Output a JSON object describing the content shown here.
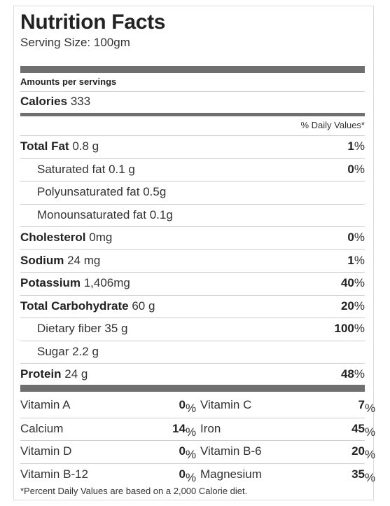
{
  "title": "Nutrition Facts",
  "serving": "Serving Size: 100gm",
  "amounts_label": "Amounts per servings",
  "calories": {
    "label": "Calories",
    "value": "333"
  },
  "dv_header": "% Daily Values*",
  "rows": [
    {
      "label": "Total Fat",
      "value": "0.8 g",
      "pct": "1",
      "bold": true
    },
    {
      "label": "Saturated fat",
      "value": "0.1 g",
      "pct": "0",
      "indent": true
    },
    {
      "label": "Polyunsaturated fat",
      "value": "0.5g",
      "pct": "",
      "indent": true
    },
    {
      "label": "Monounsaturated fat",
      "value": "0.1g",
      "pct": "",
      "indent": true
    },
    {
      "label": "Cholesterol",
      "value": "0mg",
      "pct": "0",
      "bold": true
    },
    {
      "label": "Sodium",
      "value": "24 mg",
      "pct": "1",
      "bold": true
    },
    {
      "label": "Potassium",
      "value": "1,406mg",
      "pct": "40",
      "bold": true
    },
    {
      "label": "Total Carbohydrate",
      "value": "60 g",
      "pct": "20",
      "bold": true
    },
    {
      "label": "Dietary fiber",
      "value": "35 g",
      "pct": "100",
      "indent": true
    },
    {
      "label": "Sugar",
      "value": "2.2 g",
      "pct": "",
      "indent": true
    },
    {
      "label": "Protein",
      "value": "24 g",
      "pct": "48",
      "bold": true
    }
  ],
  "vitamins": [
    {
      "left": {
        "name": "Vitamin A",
        "pct": "0"
      },
      "right": {
        "name": "Vitamin C",
        "pct": "7"
      }
    },
    {
      "left": {
        "name": "Calcium",
        "pct": "14"
      },
      "right": {
        "name": "Iron",
        "pct": "45"
      }
    },
    {
      "left": {
        "name": "Vitamin D",
        "pct": "0"
      },
      "right": {
        "name": "Vitamin B-6",
        "pct": "20"
      }
    },
    {
      "left": {
        "name": "Vitamin B-12",
        "pct": "0"
      },
      "right": {
        "name": "Magnesium",
        "pct": "35"
      }
    }
  ],
  "percent_sign": "%",
  "footnote": "*Percent Daily Values are based on a 2,000 Calorie diet."
}
